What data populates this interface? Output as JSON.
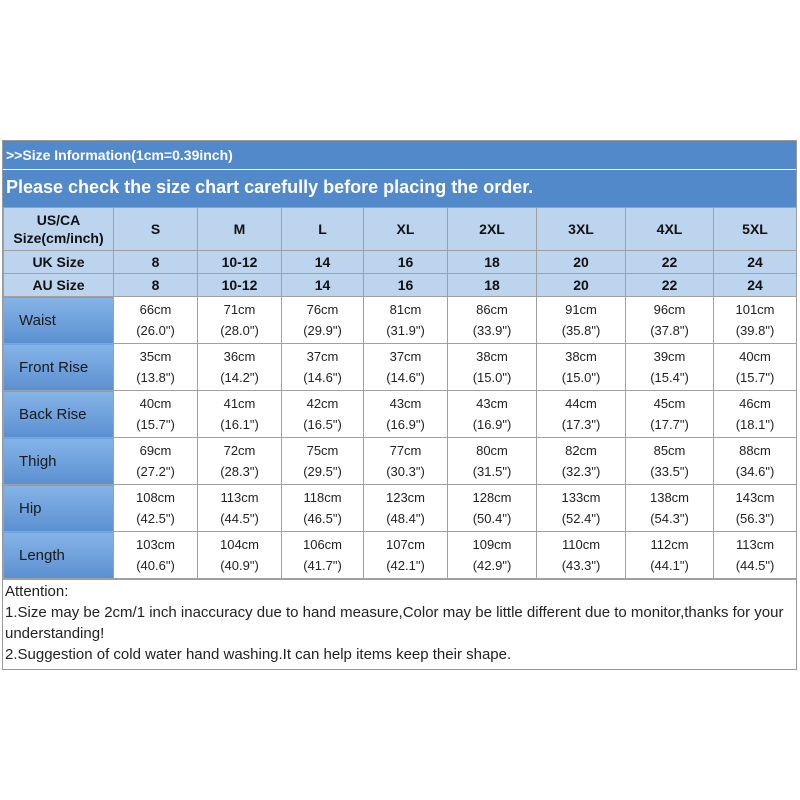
{
  "header": {
    "info": ">>Size Information(1cm=0.39inch)",
    "notice": "Please check the size chart carefully before placing the order."
  },
  "table": {
    "corner": [
      "US/CA",
      "Size(cm/inch)"
    ],
    "sizes": [
      "S",
      "M",
      "L",
      "XL",
      "2XL",
      "3XL",
      "4XL",
      "5XL"
    ],
    "size_rows": [
      {
        "label": "UK Size",
        "values": [
          "8",
          "10-12",
          "14",
          "16",
          "18",
          "20",
          "22",
          "24"
        ]
      },
      {
        "label": "AU Size",
        "values": [
          "8",
          "10-12",
          "14",
          "16",
          "18",
          "20",
          "22",
          "24"
        ]
      }
    ],
    "rows": [
      {
        "label": "Waist",
        "cm": [
          "66cm",
          "71cm",
          "76cm",
          "81cm",
          "86cm",
          "91cm",
          "96cm",
          "101cm"
        ],
        "inch": [
          "(26.0\")",
          "(28.0\")",
          "(29.9\")",
          "(31.9\")",
          "(33.9\")",
          "(35.8\")",
          "(37.8\")",
          "(39.8\")"
        ]
      },
      {
        "label": "Front Rise",
        "cm": [
          "35cm",
          "36cm",
          "37cm",
          "37cm",
          "38cm",
          "38cm",
          "39cm",
          "40cm"
        ],
        "inch": [
          "(13.8\")",
          "(14.2\")",
          "(14.6\")",
          "(14.6\")",
          "(15.0\")",
          "(15.0\")",
          "(15.4\")",
          "(15.7\")"
        ]
      },
      {
        "label": "Back Rise",
        "cm": [
          "40cm",
          "41cm",
          "42cm",
          "43cm",
          "43cm",
          "44cm",
          "45cm",
          "46cm"
        ],
        "inch": [
          "(15.7\")",
          "(16.1\")",
          "(16.5\")",
          "(16.9\")",
          "(16.9\")",
          "(17.3\")",
          "(17.7\")",
          "(18.1\")"
        ]
      },
      {
        "label": "Thigh",
        "cm": [
          "69cm",
          "72cm",
          "75cm",
          "77cm",
          "80cm",
          "82cm",
          "85cm",
          "88cm"
        ],
        "inch": [
          "(27.2\")",
          "(28.3\")",
          "(29.5\")",
          "(30.3\")",
          "(31.5\")",
          "(32.3\")",
          "(33.5\")",
          "(34.6\")"
        ]
      },
      {
        "label": "Hip",
        "cm": [
          "108cm",
          "113cm",
          "118cm",
          "123cm",
          "128cm",
          "133cm",
          "138cm",
          "143cm"
        ],
        "inch": [
          "(42.5\")",
          "(44.5\")",
          "(46.5\")",
          "(48.4\")",
          "(50.4\")",
          "(52.4\")",
          "(54.3\")",
          "(56.3\")"
        ]
      },
      {
        "label": "Length",
        "cm": [
          "103cm",
          "104cm",
          "106cm",
          "107cm",
          "109cm",
          "110cm",
          "112cm",
          "113cm"
        ],
        "inch": [
          "(40.6\")",
          "(40.9\")",
          "(41.7\")",
          "(42.1\")",
          "(42.9\")",
          "(43.3\")",
          "(44.1\")",
          "(44.5\")"
        ]
      }
    ]
  },
  "attention": {
    "title": "Attention:",
    "lines": [
      "1.Size may be 2cm/1 inch inaccuracy due to hand measure,Color may be little different due to monitor,thanks for your understanding!",
      "2.Suggestion of cold water hand washing.It can help items keep their shape."
    ]
  }
}
